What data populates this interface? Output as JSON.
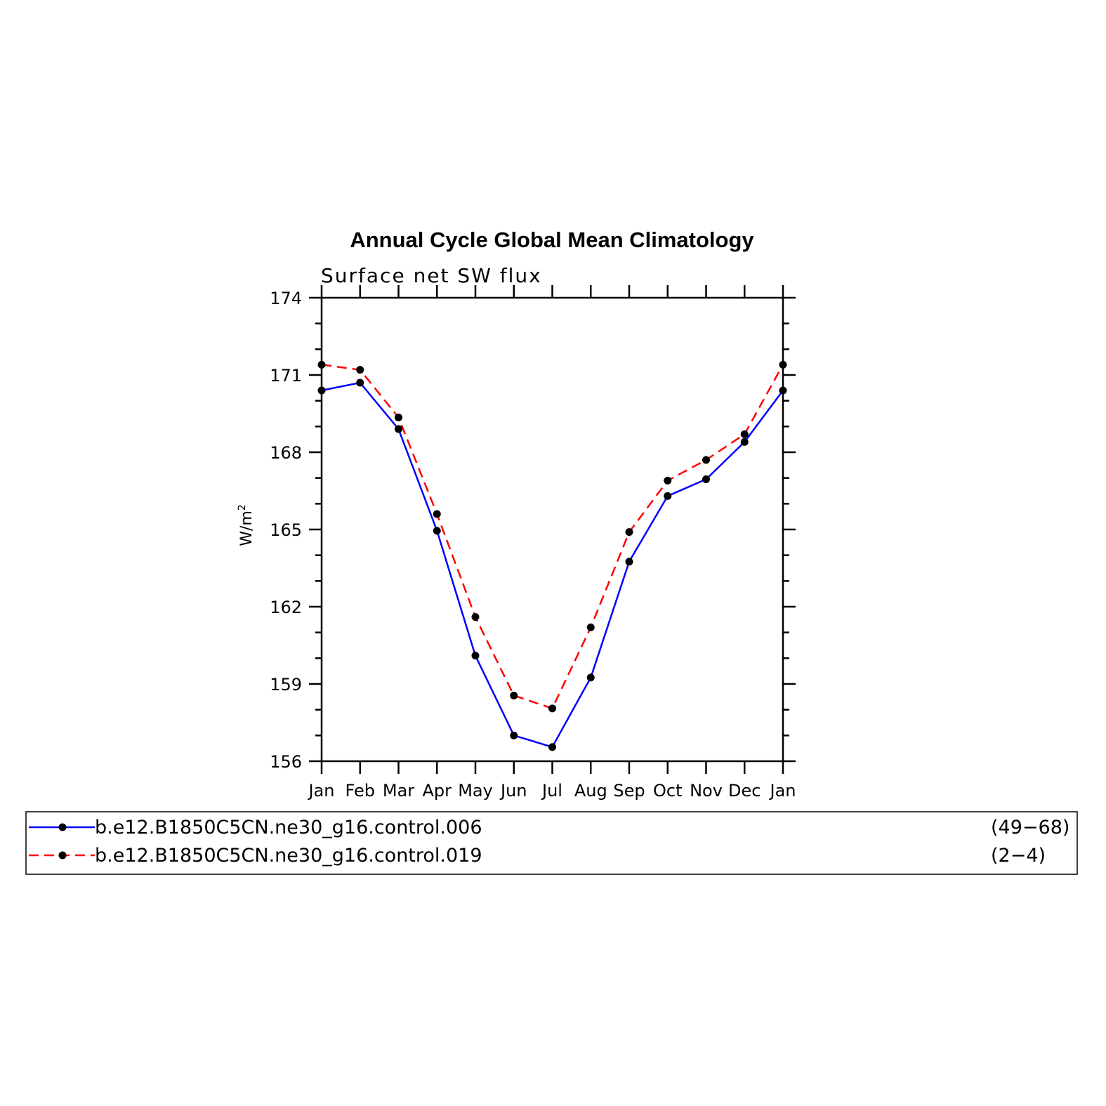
{
  "chart_data": {
    "type": "line",
    "title": "Annual Cycle Global Mean Climatology",
    "subtitle": "Surface net SW flux",
    "ylabel": "W/m",
    "ylabel_sup": "2",
    "xlabel": "",
    "categories": [
      "Jan",
      "Feb",
      "Mar",
      "Apr",
      "May",
      "Jun",
      "Jul",
      "Aug",
      "Sep",
      "Oct",
      "Nov",
      "Dec",
      "Jan"
    ],
    "ylim": [
      156,
      174
    ],
    "yticks": [
      156,
      159,
      162,
      165,
      168,
      171,
      174
    ],
    "series": [
      {
        "name": "b.e12.B1850C5CN.ne30_g16.control.006",
        "years": "(49−68)",
        "color": "#0000ff",
        "style": "solid",
        "values": [
          170.4,
          170.7,
          168.9,
          164.95,
          160.1,
          157.0,
          156.55,
          159.25,
          163.75,
          166.3,
          166.95,
          168.4,
          170.4
        ]
      },
      {
        "name": "b.e12.B1850C5CN.ne30_g16.control.019",
        "years": "(2−4)",
        "color": "#ff0000",
        "style": "dashed",
        "values": [
          171.4,
          171.2,
          169.35,
          165.6,
          161.6,
          158.55,
          158.05,
          161.2,
          164.9,
          166.9,
          167.7,
          168.7,
          171.4
        ]
      }
    ],
    "marker_color": "#000000",
    "grid": false,
    "legend": "bottom"
  }
}
